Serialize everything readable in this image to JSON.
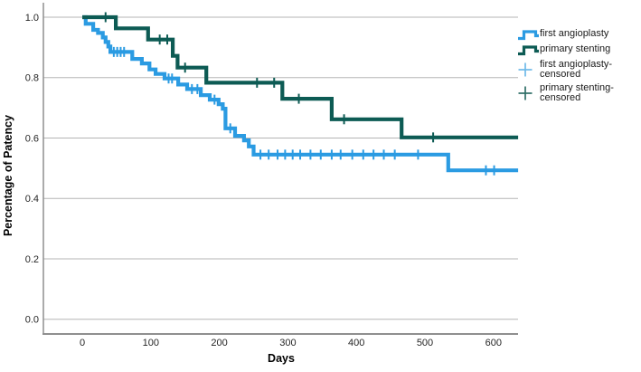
{
  "chart_data": {
    "type": "line",
    "subtype": "kaplan-meier-step",
    "title": "",
    "xlabel": "Days",
    "ylabel": "Percentage of Patency",
    "x_axis": {
      "label": "Days",
      "ticks": [
        0,
        100,
        200,
        300,
        400,
        500,
        600
      ],
      "data_range": [
        0,
        636
      ]
    },
    "y_axis": {
      "label": "Percentage of Patency",
      "ticks": [
        "0.0",
        "0.2",
        "0.4",
        "0.6",
        "0.8",
        "1.0"
      ],
      "range": [
        0.0,
        1.0
      ]
    },
    "grid": "horizontal",
    "legend_position": "right",
    "x_end": 636,
    "series": [
      {
        "name": "first angioplasty",
        "color": "#2B9BE2",
        "steps": [
          [
            0,
            1.0
          ],
          [
            5,
            0.978
          ],
          [
            16,
            0.958
          ],
          [
            23,
            0.948
          ],
          [
            30,
            0.933
          ],
          [
            34,
            0.918
          ],
          [
            38,
            0.903
          ],
          [
            41,
            0.885
          ],
          [
            73,
            0.862
          ],
          [
            87,
            0.847
          ],
          [
            98,
            0.827
          ],
          [
            107,
            0.812
          ],
          [
            120,
            0.797
          ],
          [
            140,
            0.777
          ],
          [
            153,
            0.762
          ],
          [
            173,
            0.742
          ],
          [
            186,
            0.727
          ],
          [
            199,
            0.712
          ],
          [
            205,
            0.697
          ],
          [
            209,
            0.632
          ],
          [
            223,
            0.607
          ],
          [
            236,
            0.592
          ],
          [
            243,
            0.572
          ],
          [
            250,
            0.545
          ],
          [
            534,
            0.493
          ]
        ],
        "censored": [
          [
            46,
            0.885
          ],
          [
            51,
            0.885
          ],
          [
            56,
            0.885
          ],
          [
            61,
            0.885
          ],
          [
            126,
            0.797
          ],
          [
            131,
            0.797
          ],
          [
            160,
            0.762
          ],
          [
            168,
            0.762
          ],
          [
            193,
            0.727
          ],
          [
            216,
            0.632
          ],
          [
            260,
            0.545
          ],
          [
            272,
            0.545
          ],
          [
            285,
            0.545
          ],
          [
            296,
            0.545
          ],
          [
            307,
            0.545
          ],
          [
            318,
            0.545
          ],
          [
            333,
            0.545
          ],
          [
            348,
            0.545
          ],
          [
            364,
            0.545
          ],
          [
            377,
            0.545
          ],
          [
            394,
            0.545
          ],
          [
            410,
            0.545
          ],
          [
            425,
            0.545
          ],
          [
            440,
            0.545
          ],
          [
            456,
            0.545
          ],
          [
            490,
            0.545
          ],
          [
            589,
            0.493
          ],
          [
            601,
            0.493
          ]
        ]
      },
      {
        "name": "primary stenting",
        "color": "#0D5B54",
        "steps": [
          [
            0,
            1.0
          ],
          [
            49,
            0.963
          ],
          [
            96,
            0.926
          ],
          [
            132,
            0.872
          ],
          [
            139,
            0.833
          ],
          [
            181,
            0.783
          ],
          [
            292,
            0.73
          ],
          [
            364,
            0.662
          ],
          [
            466,
            0.602
          ]
        ],
        "censored": [
          [
            34,
            1.0
          ],
          [
            113,
            0.926
          ],
          [
            124,
            0.926
          ],
          [
            150,
            0.833
          ],
          [
            255,
            0.783
          ],
          [
            280,
            0.783
          ],
          [
            316,
            0.73
          ],
          [
            382,
            0.662
          ],
          [
            512,
            0.602
          ]
        ]
      }
    ],
    "legend": [
      {
        "label": "first angioplasty",
        "type": "step-line",
        "color": "#2B9BE2"
      },
      {
        "label": "primary stenting",
        "type": "step-line",
        "color": "#0D5B54"
      },
      {
        "label": "first angioplasty-censored",
        "type": "plus",
        "color": "#6FB9E8"
      },
      {
        "label": "primary stenting-censored",
        "type": "plus",
        "color": "#2E6F67"
      }
    ],
    "style": {
      "grid_color": "#b5b5b5",
      "axis_color": "#8f8f8f",
      "tick_label_color": "#262626",
      "axis_title_color": "#000000"
    }
  }
}
